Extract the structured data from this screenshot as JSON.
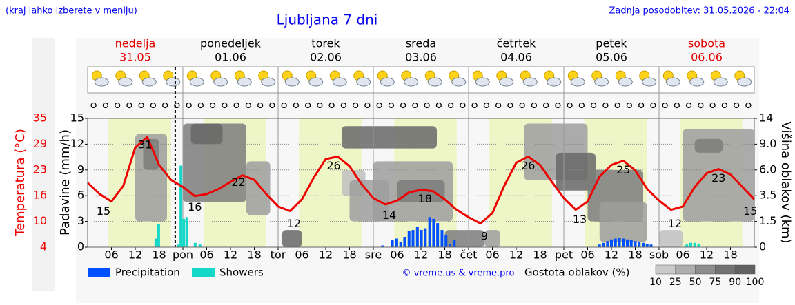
{
  "chart_data": {
    "type": "meteogram",
    "title": "Ljubljana 7 dni",
    "note_left": "(kraj lahko izberete v meniju)",
    "note_right": "Zadnja posodobitev: 31.05.2026 - 22:04",
    "days": [
      {
        "name": "nedelja",
        "date": "31.05",
        "color": "#e00000"
      },
      {
        "name": "ponedeljek",
        "date": "01.06",
        "color": "#000000"
      },
      {
        "name": "torek",
        "date": "02.06",
        "color": "#000000"
      },
      {
        "name": "sreda",
        "date": "03.06",
        "color": "#000000"
      },
      {
        "name": "četrtek",
        "date": "04.06",
        "color": "#000000"
      },
      {
        "name": "petek",
        "date": "05.06",
        "color": "#000000"
      },
      {
        "name": "sobota",
        "date": "06.06",
        "color": "#e00000"
      }
    ],
    "xlim": [
      0,
      168
    ],
    "xticks": [
      {
        "value": 6,
        "label": "06"
      },
      {
        "value": 12,
        "label": "12"
      },
      {
        "value": 18,
        "label": "18"
      },
      {
        "value": 24,
        "label": "pon"
      },
      {
        "value": 30,
        "label": "06"
      },
      {
        "value": 36,
        "label": "12"
      },
      {
        "value": 42,
        "label": "18"
      },
      {
        "value": 48,
        "label": "tor"
      },
      {
        "value": 54,
        "label": "06"
      },
      {
        "value": 60,
        "label": "12"
      },
      {
        "value": 66,
        "label": "18"
      },
      {
        "value": 72,
        "label": "sre"
      },
      {
        "value": 78,
        "label": "06"
      },
      {
        "value": 84,
        "label": "12"
      },
      {
        "value": 90,
        "label": "18"
      },
      {
        "value": 96,
        "label": "čet"
      },
      {
        "value": 102,
        "label": "06"
      },
      {
        "value": 108,
        "label": "12"
      },
      {
        "value": 114,
        "label": "18"
      },
      {
        "value": 120,
        "label": "pet"
      },
      {
        "value": 126,
        "label": "06"
      },
      {
        "value": 132,
        "label": "12"
      },
      {
        "value": 138,
        "label": "18"
      },
      {
        "value": 144,
        "label": "sob"
      },
      {
        "value": 150,
        "label": "06"
      },
      {
        "value": 156,
        "label": "12"
      },
      {
        "value": 162,
        "label": "18"
      }
    ],
    "now_x": 22.07,
    "daylight": [
      5.25,
      21
    ],
    "ylabel": "Temperatura (°C)",
    "ylim": [
      4,
      35
    ],
    "yticks": [
      {
        "value": 35,
        "label": "35"
      },
      {
        "value": 28.8,
        "label": "29"
      },
      {
        "value": 22.6,
        "label": "23"
      },
      {
        "value": 16.4,
        "label": "16"
      },
      {
        "value": 10.2,
        "label": "10"
      },
      {
        "value": 4,
        "label": "4"
      }
    ],
    "precip_label": "Padavine (mm/h)",
    "precip_lim": [
      0,
      15
    ],
    "precip_ticks": [
      15,
      12,
      9,
      6,
      3,
      0
    ],
    "y2label": "Višina oblakov (km)",
    "y2ticks": [
      {
        "value": 0,
        "label": "0"
      },
      1.5,
      3.5,
      {
        "value": 6,
        "label": "6.0"
      },
      {
        "value": 9,
        "label": "9.0"
      },
      14
    ],
    "temperature": {
      "color": "#ee0000",
      "x": [
        0,
        3,
        6,
        9,
        12,
        15,
        18,
        21,
        24,
        27,
        30,
        33,
        36,
        39,
        42,
        45,
        48,
        51,
        54,
        57,
        60,
        63,
        66,
        69,
        72,
        75,
        78,
        81,
        84,
        87,
        90,
        93,
        96,
        99,
        102,
        105,
        108,
        111,
        114,
        117,
        120,
        123,
        126,
        129,
        132,
        135,
        138,
        141,
        144,
        147,
        150,
        153,
        156,
        159,
        162,
        165,
        168
      ],
      "values": [
        19.5,
        16.8,
        15,
        18.8,
        28,
        30.5,
        23.8,
        20.2,
        18.5,
        16.3,
        16.8,
        18,
        19.7,
        21.3,
        20.2,
        16.8,
        13.8,
        12.7,
        15.5,
        20.8,
        25.2,
        25.8,
        23.5,
        19.2,
        15.8,
        14.3,
        15.2,
        17.2,
        17.8,
        17.5,
        15.5,
        13,
        11.2,
        9.7,
        12.2,
        18.8,
        24.3,
        25.8,
        23.8,
        19.7,
        15.8,
        13,
        15,
        21,
        23.8,
        24.8,
        22.5,
        18,
        15.2,
        13,
        13.8,
        18.5,
        21.8,
        22.8,
        21.5,
        18.5,
        15.5
      ]
    },
    "temp_labels": [
      {
        "x": 4,
        "value": 15
      },
      {
        "x": 14.5,
        "value": 31
      },
      {
        "x": 27,
        "value": 16
      },
      {
        "x": 38,
        "value": 22
      },
      {
        "x": 52,
        "value": 12
      },
      {
        "x": 62,
        "value": 26
      },
      {
        "x": 76,
        "value": 14
      },
      {
        "x": 85,
        "value": 18
      },
      {
        "x": 100,
        "value": 9
      },
      {
        "x": 111,
        "value": 26
      },
      {
        "x": 124,
        "value": 13
      },
      {
        "x": 135,
        "value": 25
      },
      {
        "x": 148,
        "value": 12
      },
      {
        "x": 159,
        "value": 23
      },
      {
        "x": 167,
        "value": 15
      }
    ],
    "series": [
      {
        "name": "Precipitation",
        "color": "#0050ff",
        "x": [
          74.3,
          76.8,
          77.9,
          78.9,
          79.9,
          81,
          82,
          83.1,
          84.1,
          85.1,
          86.2,
          87.2,
          88.2,
          89.3,
          90.3,
          91.3,
          92.4,
          129,
          130,
          131,
          132,
          133,
          134,
          135,
          136,
          137,
          138,
          139,
          140,
          141,
          142
        ],
        "values": [
          0.2,
          0.8,
          1.0,
          0.6,
          1.2,
          1.9,
          2.0,
          2.4,
          2.0,
          2.2,
          3.5,
          3.3,
          2.8,
          2.0,
          1.4,
          0.4,
          0.8,
          0.3,
          0.5,
          0.7,
          0.9,
          1.0,
          1.1,
          1.0,
          0.9,
          0.8,
          0.7,
          0.6,
          0.5,
          0.4,
          0.3
        ]
      },
      {
        "name": "Showers",
        "color": "#16d8c8",
        "x": [
          17.2,
          17.9,
          22.8,
          23.5,
          24.2,
          25,
          27.1,
          28.3,
          151,
          152,
          153,
          154
        ],
        "values": [
          1.0,
          2.7,
          0.3,
          9.5,
          3.3,
          3.5,
          0.5,
          0.3,
          0.3,
          0.5,
          0.5,
          0.4
        ]
      }
    ],
    "cloud_label": "Gostota oblakov (%)",
    "cloud_scale": [
      10,
      25,
      50,
      75,
      90,
      100
    ],
    "clouds": [
      {
        "x": [
          12,
          20
        ],
        "km": [
          1.5,
          11
        ],
        "value": 50
      },
      {
        "x": [
          14,
          18
        ],
        "km": [
          6,
          10
        ],
        "value": 75
      },
      {
        "x": [
          24,
          40
        ],
        "km": [
          3,
          13
        ],
        "value": 75
      },
      {
        "x": [
          26,
          34
        ],
        "km": [
          9,
          13
        ],
        "value": 90
      },
      {
        "x": [
          40,
          46
        ],
        "km": [
          2,
          7
        ],
        "value": 50
      },
      {
        "x": [
          49,
          54
        ],
        "km": [
          0,
          1
        ],
        "value": 90
      },
      {
        "x": [
          64,
          70
        ],
        "km": [
          3.5,
          6
        ],
        "value": 25
      },
      {
        "x": [
          66,
          76
        ],
        "km": [
          1.5,
          5
        ],
        "value": 50
      },
      {
        "x": [
          64,
          88
        ],
        "km": [
          8.5,
          12.5
        ],
        "value": 90
      },
      {
        "x": [
          72,
          92
        ],
        "km": [
          1.5,
          7
        ],
        "value": 50
      },
      {
        "x": [
          78,
          90
        ],
        "km": [
          3,
          5
        ],
        "value": 75
      },
      {
        "x": [
          90,
          100
        ],
        "km": [
          0,
          1
        ],
        "value": 75
      },
      {
        "x": [
          100,
          104
        ],
        "km": [
          0,
          1
        ],
        "value": 50
      },
      {
        "x": [
          110,
          126
        ],
        "km": [
          5,
          13
        ],
        "value": 50
      },
      {
        "x": [
          118,
          128
        ],
        "km": [
          4,
          8
        ],
        "value": 90
      },
      {
        "x": [
          126,
          140
        ],
        "km": [
          1.5,
          6
        ],
        "value": 75
      },
      {
        "x": [
          129,
          141
        ],
        "km": [
          0.3,
          3
        ],
        "value": 50
      },
      {
        "x": [
          144,
          150
        ],
        "km": [
          0,
          1
        ],
        "value": 25
      },
      {
        "x": [
          150,
          168
        ],
        "km": [
          1.5,
          12
        ],
        "value": 50
      },
      {
        "x": [
          153,
          160
        ],
        "km": [
          8,
          10
        ],
        "value": 75
      }
    ],
    "copyright": "© vreme.us & vreme.pro"
  }
}
